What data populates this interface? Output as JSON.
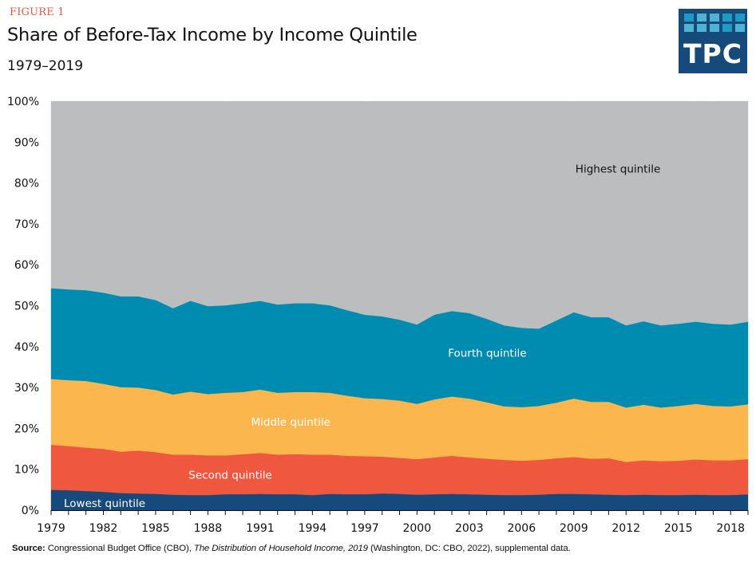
{
  "header": {
    "figure_label": "FIGURE 1",
    "title": "Share of Before-Tax Income by Income Quintile",
    "subtitle": "1979–2019"
  },
  "logo": {
    "text": "TPC",
    "background": "#154a7a",
    "cell_colors": [
      "#1e9bc4",
      "#4fb3d6",
      "#4fb3d6",
      "#1e9bc4",
      "#1e9bc4",
      "#4fb3d6",
      "#4fb3d6",
      "#4fb3d6",
      "#1e9bc4",
      "#4fb3d6"
    ]
  },
  "source": {
    "label": "Source:",
    "text_before": " Congressional Budget Office (CBO), ",
    "italic": "The Distribution of Household Income, 2019",
    "text_after": " (Washington, DC: CBO, 2022), supplemental data."
  },
  "chart_data": {
    "type": "area",
    "stacked": true,
    "title": "Share of Before-Tax Income by Income Quintile",
    "subtitle": "1979–2019",
    "xlabel": "",
    "ylabel": "",
    "x": [
      1979,
      1980,
      1981,
      1982,
      1983,
      1984,
      1985,
      1986,
      1987,
      1988,
      1989,
      1990,
      1991,
      1992,
      1993,
      1994,
      1995,
      1996,
      1997,
      1998,
      1999,
      2000,
      2001,
      2002,
      2003,
      2004,
      2005,
      2006,
      2007,
      2008,
      2009,
      2010,
      2011,
      2012,
      2013,
      2014,
      2015,
      2016,
      2017,
      2018,
      2019
    ],
    "x_tick_labels": [
      "1979",
      "1982",
      "1985",
      "1988",
      "1991",
      "1994",
      "1997",
      "2000",
      "2003",
      "2006",
      "2009",
      "2012",
      "2015",
      "2018"
    ],
    "y_tick_labels": [
      "0%",
      "10%",
      "20%",
      "30%",
      "40%",
      "50%",
      "60%",
      "70%",
      "80%",
      "90%",
      "100%"
    ],
    "ylim": [
      0,
      100
    ],
    "grid": false,
    "series": [
      {
        "name": "Lowest quintile",
        "label": "Lowest quintile",
        "color": "#174a7c",
        "label_color": "#ffffff",
        "values": [
          5.0,
          4.9,
          4.7,
          4.5,
          4.2,
          4.1,
          4.0,
          3.8,
          3.7,
          3.7,
          3.9,
          3.9,
          4.0,
          3.9,
          3.9,
          3.7,
          4.0,
          3.9,
          3.9,
          4.1,
          4.0,
          3.8,
          3.9,
          4.0,
          3.9,
          3.8,
          3.7,
          3.7,
          3.8,
          4.0,
          4.0,
          3.9,
          3.8,
          3.7,
          3.8,
          3.7,
          3.7,
          3.8,
          3.7,
          3.7,
          3.9
        ]
      },
      {
        "name": "Second quintile",
        "label": "Second quintile",
        "color": "#f0573f",
        "label_color": "#ffffff",
        "values": [
          11.0,
          10.8,
          10.6,
          10.5,
          10.1,
          10.5,
          10.2,
          9.8,
          9.9,
          9.7,
          9.5,
          9.8,
          10.0,
          9.7,
          9.8,
          9.9,
          9.6,
          9.4,
          9.3,
          9.0,
          8.8,
          8.7,
          9.0,
          9.3,
          9.0,
          8.8,
          8.6,
          8.4,
          8.5,
          8.7,
          9.0,
          8.7,
          8.9,
          8.1,
          8.4,
          8.3,
          8.4,
          8.6,
          8.5,
          8.5,
          8.6
        ]
      },
      {
        "name": "Middle quintile",
        "label": "Middle quintile",
        "color": "#fbb64e",
        "label_color": "#ffffff",
        "values": [
          16.1,
          16.1,
          16.3,
          15.9,
          15.8,
          15.4,
          15.2,
          14.7,
          15.4,
          15.0,
          15.3,
          15.2,
          15.5,
          15.1,
          15.2,
          15.3,
          15.1,
          14.7,
          14.2,
          14.1,
          14.0,
          13.5,
          14.2,
          14.5,
          14.4,
          13.8,
          13.1,
          13.1,
          13.2,
          13.6,
          14.3,
          13.9,
          13.8,
          13.3,
          13.6,
          13.1,
          13.4,
          13.6,
          13.3,
          13.2,
          13.4
        ]
      },
      {
        "name": "Fourth quintile",
        "label": "Fourth quintile",
        "color": "#008bb0",
        "label_color": "#ffffff",
        "values": [
          22.2,
          22.2,
          22.2,
          22.3,
          22.2,
          22.3,
          22.0,
          21.1,
          22.2,
          21.5,
          21.4,
          21.7,
          21.7,
          21.6,
          21.7,
          21.7,
          21.4,
          20.9,
          20.4,
          20.2,
          19.8,
          19.4,
          20.7,
          20.9,
          20.9,
          20.4,
          19.8,
          19.4,
          18.9,
          20.1,
          21.1,
          20.7,
          20.7,
          20.1,
          20.4,
          20.1,
          20.1,
          20.1,
          20.1,
          20.0,
          20.2
        ]
      },
      {
        "name": "Highest quintile",
        "label": "Highest quintile",
        "color": "#bcbdbf",
        "label_color": "#111111",
        "values": [
          45.7,
          46.0,
          46.2,
          46.8,
          47.7,
          47.7,
          48.6,
          50.6,
          48.8,
          50.1,
          49.9,
          49.4,
          48.8,
          49.7,
          49.4,
          49.4,
          49.9,
          51.1,
          52.2,
          52.6,
          53.4,
          54.6,
          52.2,
          51.3,
          51.8,
          53.2,
          54.8,
          55.4,
          55.6,
          53.6,
          51.6,
          52.8,
          52.8,
          54.8,
          53.8,
          54.8,
          54.4,
          53.9,
          54.4,
          54.6,
          53.9
        ]
      }
    ]
  }
}
